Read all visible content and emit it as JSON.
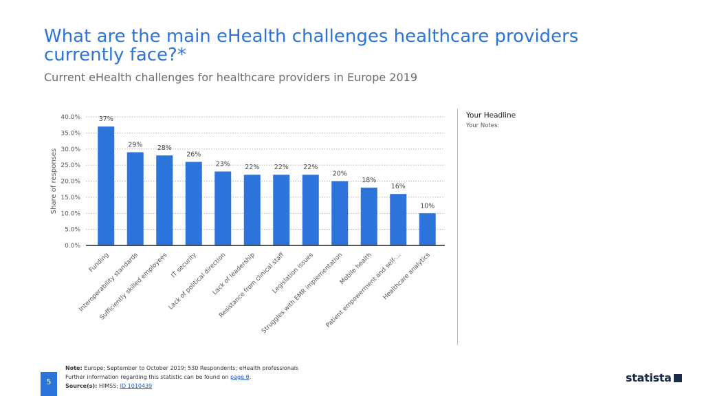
{
  "header": {
    "title": "What are the main eHealth challenges healthcare providers currently face?*",
    "subtitle": "Current eHealth challenges for healthcare providers in Europe 2019"
  },
  "sidebar": {
    "headline": "Your Headline",
    "notes": "Your Notes:"
  },
  "footer": {
    "note_label": "Note:",
    "note_text": "Europe; September to October 2019; 530 Respondents; eHealth professionals",
    "further_info": "Further information regarding this statistic can be found on",
    "page_link": "page 8",
    "source_label": "Source(s):",
    "source_text": "HIMSS;",
    "source_id": "ID 1010439",
    "page_number": "5",
    "brand": "statista"
  },
  "colors": {
    "accent": "#2d74da",
    "bar": "#2d74da",
    "brand_dark": "#1c2a4a"
  },
  "chart_data": {
    "type": "bar",
    "title": "Current eHealth challenges for healthcare providers in Europe 2019",
    "xlabel": "",
    "ylabel": "Share of responses",
    "ylim": [
      0,
      40
    ],
    "yticks": [
      "0.0%",
      "5.0%",
      "10.0%",
      "15.0%",
      "20.0%",
      "25.0%",
      "30.0%",
      "35.0%",
      "40.0%"
    ],
    "grid": true,
    "categories": [
      "Funding",
      "Interoperability standards",
      "Sufficiently skilled employees",
      "IT security",
      "Lack of political direction",
      "Lack of leadership",
      "Resistance from clinical staff",
      "Legislation issues",
      "Struggles with EMR implementation",
      "Mobile health",
      "Patient empowerment and self-...",
      "Healthcare analytics"
    ],
    "values": [
      37,
      29,
      28,
      26,
      23,
      22,
      22,
      22,
      20,
      18,
      16,
      10
    ],
    "value_labels": [
      "37%",
      "29%",
      "28%",
      "26%",
      "23%",
      "22%",
      "22%",
      "22%",
      "20%",
      "18%",
      "16%",
      "10%"
    ]
  }
}
